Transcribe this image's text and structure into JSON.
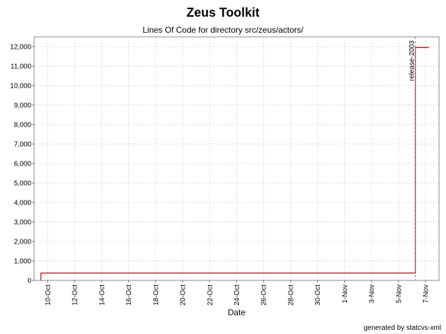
{
  "header": {
    "title": "Zeus Toolkit",
    "subtitle": "Lines Of Code for directory src/zeus/actors/"
  },
  "footer": {
    "credit": "generated by statcvs-xml"
  },
  "colors": {
    "series": "#cc0000",
    "marker": "#6666aa",
    "grid": "#d8d8d8",
    "plot_border": "#888888"
  },
  "chart_data": {
    "type": "line",
    "title": "Zeus Toolkit",
    "subtitle": "Lines Of Code for directory src/zeus/actors/",
    "xlabel": "Date",
    "ylabel": "",
    "x_type": "date",
    "x_range": [
      "2002-10-09",
      "2002-11-08"
    ],
    "ylim": [
      0,
      12500
    ],
    "y_ticks": [
      0,
      1000,
      2000,
      3000,
      4000,
      5000,
      6000,
      7000,
      8000,
      9000,
      10000,
      11000,
      12000
    ],
    "y_tick_labels": [
      "0",
      "1,000",
      "2,000",
      "3,000",
      "4,000",
      "5,000",
      "6,000",
      "7,000",
      "8,000",
      "9,000",
      "10,000",
      "11,000",
      "12,000"
    ],
    "x_ticks": [
      "2002-10-10",
      "2002-10-12",
      "2002-10-14",
      "2002-10-16",
      "2002-10-18",
      "2002-10-20",
      "2002-10-22",
      "2002-10-24",
      "2002-10-26",
      "2002-10-28",
      "2002-10-30",
      "2002-11-01",
      "2002-11-03",
      "2002-11-05",
      "2002-11-07"
    ],
    "x_tick_labels": [
      "10-Oct",
      "12-Oct",
      "14-Oct",
      "16-Oct",
      "18-Oct",
      "20-Oct",
      "22-Oct",
      "24-Oct",
      "26-Oct",
      "28-Oct",
      "30-Oct",
      "1-Nov",
      "3-Nov",
      "5-Nov",
      "7-Nov"
    ],
    "grid": true,
    "step": true,
    "series": [
      {
        "name": "",
        "points": [
          {
            "x": "2002-10-09T12:00",
            "y": 0
          },
          {
            "x": "2002-10-09T12:00",
            "y": 380
          },
          {
            "x": "2002-11-06T06:00",
            "y": 380
          },
          {
            "x": "2002-11-06T06:00",
            "y": 11950
          },
          {
            "x": "2002-11-07T06:00",
            "y": 11950
          }
        ]
      }
    ],
    "markers": [
      {
        "label": "release-2003",
        "x": "2002-11-06T06:00"
      }
    ]
  }
}
